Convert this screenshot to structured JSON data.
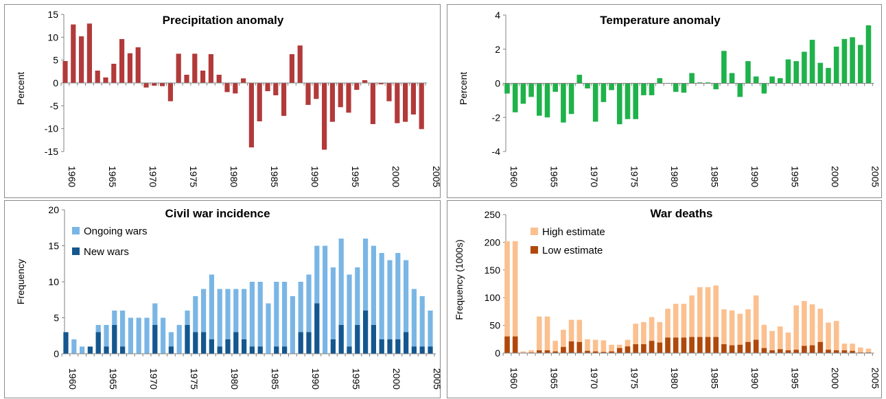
{
  "chart_data": [
    {
      "id": "precip",
      "type": "bar",
      "title": "Precipitation anomaly",
      "ylabel": "Percent",
      "xlabel": "",
      "ylim": [
        -15,
        15
      ],
      "yticks": [
        15,
        10,
        5,
        0,
        -5,
        -10,
        -15
      ],
      "x_start": 1960,
      "x_ticks": [
        1960,
        1965,
        1970,
        1975,
        1980,
        1985,
        1990,
        1995,
        2000,
        2005
      ],
      "grid": false,
      "color": "#b23a3a",
      "series": [
        {
          "values": [
            4.8,
            12.8,
            10.2,
            13.0,
            2.7,
            1.2,
            4.2,
            9.6,
            6.5,
            7.8,
            -1.0,
            -0.6,
            -0.7,
            -4.0,
            6.4,
            1.8,
            6.4,
            2.7,
            6.3,
            1.8,
            -2.0,
            -2.3,
            1.0,
            -14.1,
            -8.4,
            -1.8,
            -2.7,
            -7.2,
            6.3,
            8.2,
            -4.8,
            -3.5,
            -14.6,
            -8.5,
            -5.3,
            -6.5,
            -1.5,
            0.6,
            -9.0,
            -0.3,
            -4.0,
            -8.8,
            -8.5,
            -6.9,
            -10.1
          ]
        }
      ]
    },
    {
      "id": "temp",
      "type": "bar",
      "title": "Temperature anomaly",
      "ylabel": "Percent",
      "xlabel": "",
      "ylim": [
        -4,
        4
      ],
      "yticks": [
        4,
        2,
        0,
        -2,
        -4
      ],
      "x_start": 1960,
      "x_ticks": [
        1960,
        1965,
        1970,
        1975,
        1980,
        1985,
        1990,
        1995,
        2000,
        2005
      ],
      "grid": false,
      "color": "#1fb24a",
      "series": [
        {
          "values": [
            -0.6,
            -1.7,
            -1.2,
            -0.8,
            -1.9,
            -2.0,
            -0.5,
            -2.3,
            -1.8,
            0.5,
            -0.3,
            -2.25,
            -1.1,
            -0.4,
            -2.4,
            -2.1,
            -2.1,
            -0.7,
            -0.7,
            0.3,
            0.0,
            -0.5,
            -0.55,
            0.6,
            0.05,
            0.05,
            -0.35,
            1.9,
            0.6,
            -0.8,
            1.3,
            0.4,
            -0.6,
            0.4,
            0.3,
            1.4,
            1.3,
            1.85,
            2.55,
            1.2,
            0.9,
            2.15,
            2.6,
            2.7,
            2.25,
            3.4
          ]
        }
      ]
    },
    {
      "id": "civilwar",
      "type": "bar",
      "title": "Civil war incidence",
      "ylabel": "Frequency",
      "xlabel": "",
      "ylim": [
        0,
        20
      ],
      "yticks": [
        20,
        15,
        10,
        5,
        0
      ],
      "x_start": 1960,
      "x_ticks": [
        1960,
        1965,
        1970,
        1975,
        1980,
        1985,
        1990,
        1995,
        2000,
        2005
      ],
      "grid": false,
      "legend_position": "top-left",
      "series": [
        {
          "name": "Ongoing wars",
          "color": "#7ab6e5",
          "values": [
            3,
            2,
            1,
            1,
            4,
            4,
            6,
            6,
            5,
            5,
            5,
            7,
            5,
            3,
            4,
            6,
            8,
            9,
            11,
            9,
            9,
            9,
            9,
            10,
            10,
            7,
            10,
            10,
            8,
            10,
            11,
            15,
            15,
            12,
            16,
            11,
            12,
            16,
            15,
            14,
            13,
            14,
            13,
            9,
            8,
            6
          ]
        },
        {
          "name": "New wars",
          "color": "#14578f",
          "values": [
            3,
            0,
            0,
            1,
            3,
            1,
            4,
            1,
            0,
            0,
            0,
            4,
            0,
            1,
            0,
            4,
            3,
            3,
            2,
            1,
            2,
            3,
            2,
            1,
            1,
            0,
            1,
            1,
            0,
            3,
            3,
            7,
            0,
            2,
            4,
            1,
            4,
            6,
            4,
            2,
            2,
            2,
            3,
            1,
            1,
            1
          ]
        }
      ]
    },
    {
      "id": "deaths",
      "type": "bar",
      "title": "War deaths",
      "ylabel": "Frequency (1000s)",
      "xlabel": "",
      "ylim": [
        0,
        250
      ],
      "yticks": [
        250,
        200,
        150,
        100,
        50,
        0
      ],
      "x_start": 1960,
      "x_ticks": [
        1960,
        1965,
        1970,
        1975,
        1980,
        1985,
        1990,
        1995,
        2000,
        2005
      ],
      "grid": false,
      "legend_position": "top-left",
      "series": [
        {
          "name": "High estimate",
          "color": "#fbc08f",
          "values": [
            202,
            202,
            3,
            5,
            66,
            66,
            22,
            42,
            60,
            60,
            25,
            24,
            23,
            15,
            15,
            24,
            53,
            56,
            65,
            56,
            80,
            89,
            89,
            104,
            119,
            119,
            122,
            79,
            77,
            71,
            79,
            104,
            51,
            40,
            48,
            37,
            86,
            94,
            88,
            80,
            55,
            58,
            17,
            17,
            10,
            8
          ]
        },
        {
          "name": "Low estimate",
          "color": "#b0480c",
          "values": [
            30,
            30,
            0,
            1,
            5,
            5,
            3,
            11,
            21,
            20,
            4,
            3,
            2,
            3,
            9,
            12,
            16,
            16,
            22,
            19,
            28,
            28,
            28,
            29,
            29,
            29,
            29,
            16,
            14,
            15,
            20,
            24,
            9,
            5,
            7,
            5,
            6,
            13,
            14,
            20,
            6,
            5,
            5,
            4,
            1,
            1
          ]
        }
      ]
    }
  ]
}
